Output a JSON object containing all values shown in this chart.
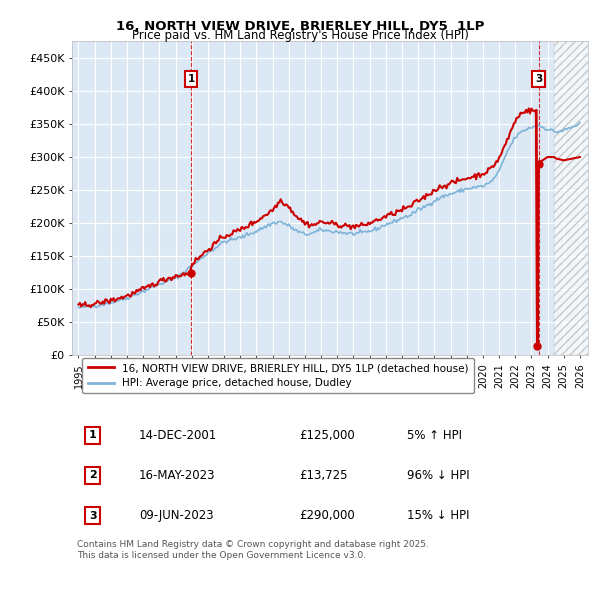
{
  "title": "16, NORTH VIEW DRIVE, BRIERLEY HILL, DY5  1LP",
  "subtitle": "Price paid vs. HM Land Registry's House Price Index (HPI)",
  "ylim": [
    0,
    475000
  ],
  "yticks": [
    0,
    50000,
    100000,
    150000,
    200000,
    250000,
    300000,
    350000,
    400000,
    450000
  ],
  "ytick_labels": [
    "£0",
    "£50K",
    "£100K",
    "£150K",
    "£200K",
    "£250K",
    "£300K",
    "£350K",
    "£400K",
    "£450K"
  ],
  "xlim_start": 1994.6,
  "xlim_end": 2026.5,
  "background_color": "#ffffff",
  "plot_bg_color": "#dce9f5",
  "grid_color": "#ffffff",
  "hpi_line_color": "#7fb3d8",
  "price_line_color": "#cc0000",
  "transactions": [
    {
      "id": 1,
      "year": 2001.96,
      "price": 125000,
      "date": "14-DEC-2001",
      "pct": "5%",
      "dir": "↑"
    },
    {
      "id": 2,
      "year": 2023.37,
      "price": 13725,
      "date": "16-MAY-2023",
      "pct": "96%",
      "dir": "↓"
    },
    {
      "id": 3,
      "year": 2023.44,
      "price": 290000,
      "date": "09-JUN-2023",
      "pct": "15%",
      "dir": "↓"
    }
  ],
  "legend_property": "16, NORTH VIEW DRIVE, BRIERLEY HILL, DY5 1LP (detached house)",
  "legend_hpi": "HPI: Average price, detached house, Dudley",
  "footer": "Contains HM Land Registry data © Crown copyright and database right 2025.\nThis data is licensed under the Open Government Licence v3.0.",
  "hatch_start": 2024.42
}
